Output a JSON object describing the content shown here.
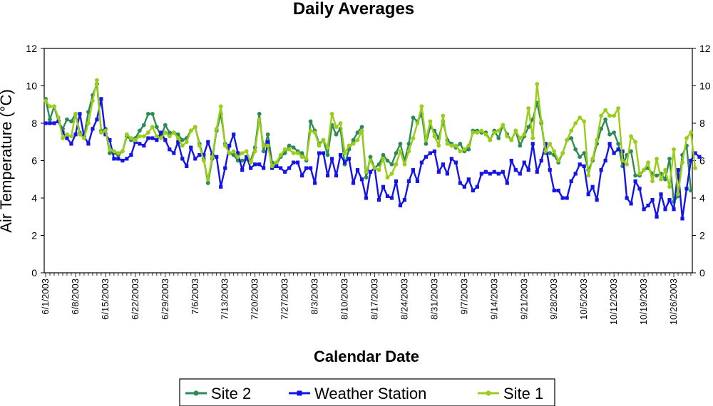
{
  "chart_data": {
    "type": "line",
    "title": "Daily Averages",
    "xlabel": "Calendar Date",
    "ylabel": "Air Temperature (°C)",
    "ylim": [
      0,
      12
    ],
    "yticks": [
      0,
      2,
      4,
      6,
      8,
      10,
      12
    ],
    "x_start": "6/1/2003",
    "x_end": "10/31/2003",
    "xtick_labels": [
      "6/1/2003",
      "6/8/2003",
      "6/15/2003",
      "6/22/2003",
      "6/29/2003",
      "7/6/2003",
      "7/13/2003",
      "7/20/2003",
      "7/27/2003",
      "8/3/2003",
      "8/10/2003",
      "8/17/2003",
      "8/24/2003",
      "8/31/2003",
      "9/7/2003",
      "9/14/2003",
      "9/21/2003",
      "9/28/2003",
      "10/5/2003",
      "10/12/2003",
      "10/19/2003",
      "10/26/2003"
    ],
    "grid": false,
    "legend": "bottom",
    "series": [
      {
        "name": "Site 2",
        "color": "#2e8b57",
        "marker": "circle",
        "values": [
          9.3,
          8.2,
          8.9,
          8.1,
          7.7,
          8.2,
          8.1,
          8.5,
          7.5,
          7.3,
          8.6,
          9.5,
          10.1,
          7.6,
          7.7,
          6.4,
          6.4,
          6.3,
          6.5,
          7.3,
          7.1,
          7.2,
          7.6,
          7.9,
          8.5,
          8.5,
          7.8,
          7.3,
          7.9,
          7.5,
          7.5,
          7.4,
          7.1,
          7.2,
          7.6,
          7.8,
          6.9,
          6.1,
          4.8,
          6.1,
          7.6,
          8.5,
          6.9,
          6.4,
          6.3,
          6.0,
          6.0,
          6.1,
          6.0,
          6.7,
          8.5,
          6.5,
          7.4,
          5.9,
          5.8,
          6.2,
          6.4,
          6.8,
          6.7,
          6.5,
          6.4,
          6.0,
          8.1,
          7.6,
          6.9,
          7.1,
          6.3,
          7.9,
          7.4,
          7.7,
          5.8,
          6.6,
          7.1,
          7.5,
          7.8,
          5.1,
          6.2,
          5.6,
          5.8,
          6.3,
          6.0,
          5.8,
          6.4,
          6.9,
          6.0,
          6.9,
          8.3,
          8.1,
          8.5,
          6.9,
          7.8,
          7.6,
          7.2,
          8.1,
          7.1,
          6.9,
          6.7,
          6.9,
          6.5,
          6.6,
          7.6,
          7.6,
          7.5,
          7.5,
          7.1,
          7.6,
          7.2,
          7.9,
          7.4,
          7.1,
          7.6,
          6.8,
          7.3,
          7.8,
          8.2,
          9.1,
          8.0,
          6.4,
          6.4,
          6.3,
          5.9,
          6.4,
          7.1,
          7.2,
          6.6,
          6.2,
          6.4,
          5.5,
          6.0,
          6.9,
          7.7,
          8.2,
          7.4,
          7.5,
          6.9,
          5.7,
          6.3,
          6.5,
          5.2,
          5.2,
          5.5,
          5.6,
          5.3,
          5.2,
          5.3,
          5.0,
          6.1,
          3.8,
          4.1,
          6.3,
          6.8,
          4.4
        ]
      },
      {
        "name": "Weather Station",
        "color": "#1414e6",
        "marker": "square",
        "values": [
          8.0,
          8.0,
          8.0,
          8.1,
          7.5,
          7.2,
          6.9,
          7.4,
          8.5,
          7.3,
          6.9,
          7.7,
          8.2,
          9.3,
          7.4,
          7.1,
          6.1,
          6.1,
          6.0,
          6.1,
          6.3,
          7.0,
          6.9,
          6.8,
          7.2,
          7.2,
          7.1,
          7.5,
          7.1,
          6.6,
          6.4,
          7.0,
          6.1,
          5.7,
          6.7,
          6.1,
          6.3,
          6.3,
          7.0,
          6.3,
          6.2,
          4.6,
          5.6,
          6.8,
          7.4,
          6.4,
          5.5,
          6.2,
          5.6,
          5.8,
          5.8,
          5.6,
          7.0,
          5.6,
          5.7,
          5.6,
          5.4,
          5.6,
          5.9,
          5.9,
          5.2,
          5.6,
          5.6,
          4.8,
          6.4,
          6.4,
          5.2,
          6.1,
          5.2,
          6.3,
          5.9,
          6.1,
          4.8,
          5.5,
          5.0,
          4.0,
          5.4,
          5.6,
          3.9,
          4.6,
          4.1,
          4.0,
          4.9,
          3.6,
          3.9,
          4.9,
          5.5,
          4.9,
          5.9,
          6.2,
          6.4,
          6.5,
          5.4,
          5.8,
          5.3,
          6.1,
          5.9,
          4.8,
          4.6,
          5.0,
          4.4,
          4.6,
          5.3,
          5.4,
          5.3,
          5.4,
          5.3,
          5.4,
          4.8,
          6.0,
          5.5,
          5.3,
          5.9,
          5.5,
          6.9,
          5.4,
          6.0,
          6.9,
          5.5,
          4.4,
          4.4,
          4.0,
          4.0,
          4.9,
          5.3,
          5.8,
          5.7,
          4.2,
          4.6,
          3.9,
          5.5,
          6.0,
          6.9,
          6.4,
          6.6,
          6.5,
          4.0,
          3.7,
          4.9,
          4.5,
          3.4,
          3.6,
          3.9,
          3.0,
          4.2,
          3.4,
          3.9,
          3.4,
          5.5,
          2.9,
          4.5,
          6.0,
          6.4,
          6.2
        ]
      },
      {
        "name": "Site 1",
        "color": "#9acd1a",
        "marker": "circle",
        "values": [
          9.2,
          8.9,
          8.9,
          8.3,
          7.2,
          7.4,
          7.3,
          8.5,
          7.4,
          7.2,
          8.0,
          9.2,
          10.3,
          7.5,
          7.6,
          6.6,
          6.5,
          6.4,
          6.5,
          7.4,
          7.2,
          7.1,
          7.3,
          7.3,
          7.5,
          7.8,
          7.3,
          7.2,
          7.5,
          7.3,
          7.5,
          7.2,
          6.8,
          7.0,
          7.6,
          7.8,
          6.8,
          6.0,
          5.0,
          6.2,
          7.7,
          8.9,
          6.8,
          6.4,
          6.5,
          6.2,
          6.4,
          6.5,
          5.9,
          6.5,
          8.2,
          6.8,
          6.8,
          5.7,
          5.9,
          6.3,
          6.6,
          6.6,
          6.4,
          6.4,
          6.2,
          6.1,
          7.6,
          7.5,
          6.8,
          7.1,
          6.7,
          8.5,
          7.8,
          8.0,
          6.4,
          6.8,
          6.9,
          7.1,
          7.6,
          5.4,
          6.0,
          5.6,
          5.5,
          6.1,
          5.1,
          5.3,
          5.8,
          6.5,
          5.8,
          6.5,
          7.2,
          8.0,
          8.9,
          7.1,
          8.1,
          7.3,
          6.8,
          8.4,
          6.9,
          6.8,
          6.8,
          6.5,
          6.6,
          6.8,
          7.5,
          7.5,
          7.6,
          7.4,
          7.1,
          7.5,
          7.6,
          7.9,
          7.3,
          7.1,
          7.6,
          7.2,
          7.4,
          8.8,
          7.2,
          10.1,
          8.1,
          6.5,
          6.9,
          6.5,
          6.0,
          6.4,
          7.1,
          7.6,
          8.0,
          8.3,
          8.1,
          5.2,
          6.1,
          7.1,
          8.4,
          8.7,
          8.4,
          8.4,
          8.8,
          6.0,
          5.8,
          7.3,
          7.0,
          5.3,
          5.5,
          5.9,
          4.9,
          6.1,
          5.0,
          5.5,
          4.6,
          6.6,
          4.2,
          5.9,
          7.2,
          7.5,
          5.6
        ]
      }
    ]
  }
}
